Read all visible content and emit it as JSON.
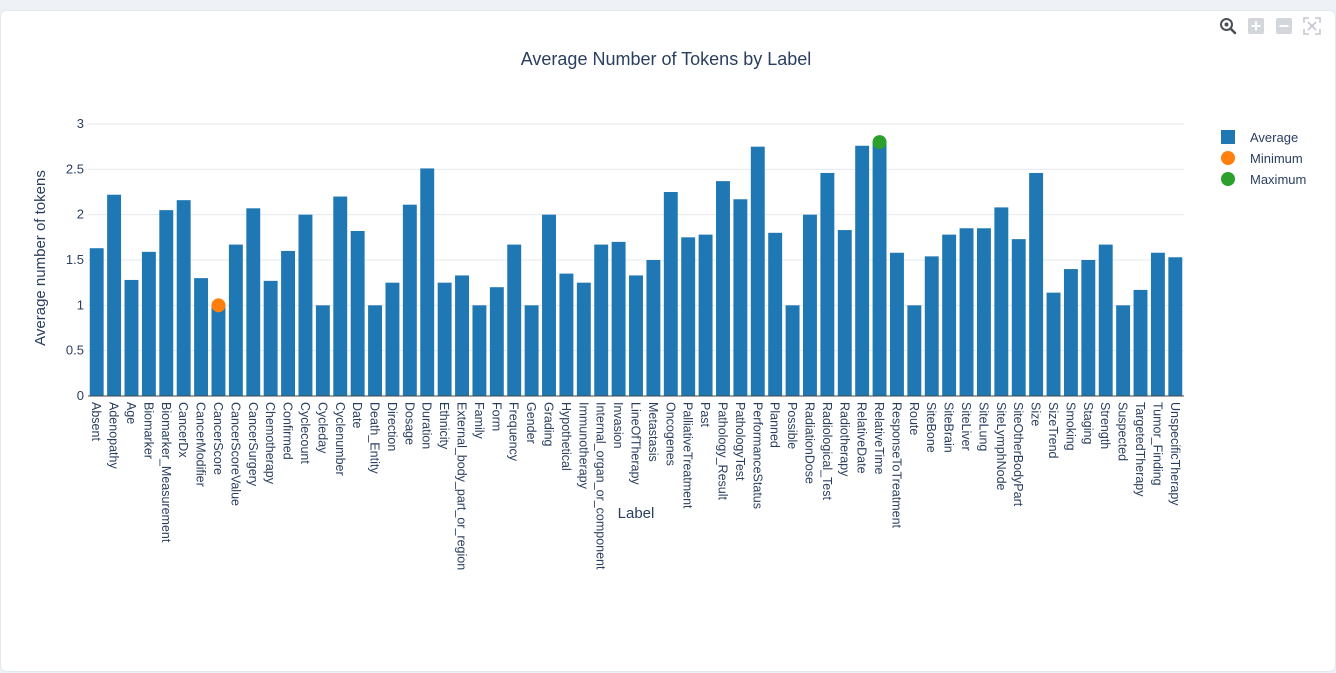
{
  "chart_data": {
    "type": "bar",
    "title": "Average Number of Tokens by Label",
    "xlabel": "Label",
    "ylabel": "Average number of tokens",
    "ylim": [
      0,
      3
    ],
    "yticks": [
      "0",
      "0.5",
      "1",
      "1.5",
      "2",
      "2.5",
      "3"
    ],
    "grid": true,
    "legend_position": "top-right",
    "categories": [
      "Absent",
      "Adenopathy",
      "Age",
      "Biomarker",
      "Biomarker_Measurement",
      "CancerDx",
      "CancerModifier",
      "CancerScore",
      "CancerScoreValue",
      "CancerSurgery",
      "Chemotherapy",
      "Confirmed",
      "Cyclecount",
      "Cycleday",
      "Cyclenumber",
      "Date",
      "Death_Entity",
      "Direction",
      "Dosage",
      "Duration",
      "Ethnicity",
      "External_body_part_or_region",
      "Family",
      "Form",
      "Frequency",
      "Gender",
      "Grading",
      "Hypothetical",
      "Immunotherapy",
      "Internal_organ_or_component",
      "Invasion",
      "LineOfTherapy",
      "Metastasis",
      "Oncogenes",
      "PalliativeTreatment",
      "Past",
      "Pathology_Result",
      "PathologyTest",
      "PerformanceStatus",
      "Planned",
      "Possible",
      "RadiationDose",
      "Radiological_Test",
      "Radiotherapy",
      "RelativeDate",
      "RelativeTime",
      "ResponseToTreatment",
      "Route",
      "SiteBone",
      "SiteBrain",
      "SiteLiver",
      "SiteLung",
      "SiteLymphNode",
      "SiteOtherBodyPart",
      "Size",
      "SizeTrend",
      "Smoking",
      "Staging",
      "Strength",
      "Suspected",
      "TargetedTherapy",
      "Tumor_Finding",
      "UnspecificTherapy"
    ],
    "series": [
      {
        "name": "Average",
        "kind": "bar",
        "color": "#1f77b4",
        "values": [
          1.63,
          2.22,
          1.28,
          1.59,
          2.05,
          2.16,
          1.3,
          1.0,
          1.67,
          2.07,
          1.27,
          1.6,
          2.0,
          1.0,
          2.2,
          1.82,
          1.0,
          1.25,
          2.11,
          2.51,
          1.25,
          1.33,
          1.0,
          1.2,
          1.67,
          1.0,
          2.0,
          1.35,
          1.25,
          1.67,
          1.7,
          1.33,
          1.5,
          2.25,
          1.75,
          1.78,
          2.37,
          2.17,
          2.75,
          1.8,
          1.0,
          2.0,
          2.46,
          1.83,
          2.76,
          2.8,
          1.58,
          1.0,
          1.54,
          1.78,
          1.85,
          1.85,
          2.08,
          1.73,
          2.46,
          1.14,
          1.4,
          1.5,
          1.67,
          1.0,
          1.17,
          1.58,
          1.53
        ]
      },
      {
        "name": "Minimum",
        "kind": "marker",
        "color": "#ff7f0e",
        "points": [
          {
            "x": "CancerScore",
            "y": 1.0
          }
        ]
      },
      {
        "name": "Maximum",
        "kind": "marker",
        "color": "#2ca02c",
        "points": [
          {
            "x": "RelativeTime",
            "y": 2.8
          }
        ]
      }
    ]
  },
  "modebar": {
    "icons": [
      "zoom-icon",
      "zoom-in-icon",
      "zoom-out-icon",
      "autoscale-icon"
    ]
  }
}
